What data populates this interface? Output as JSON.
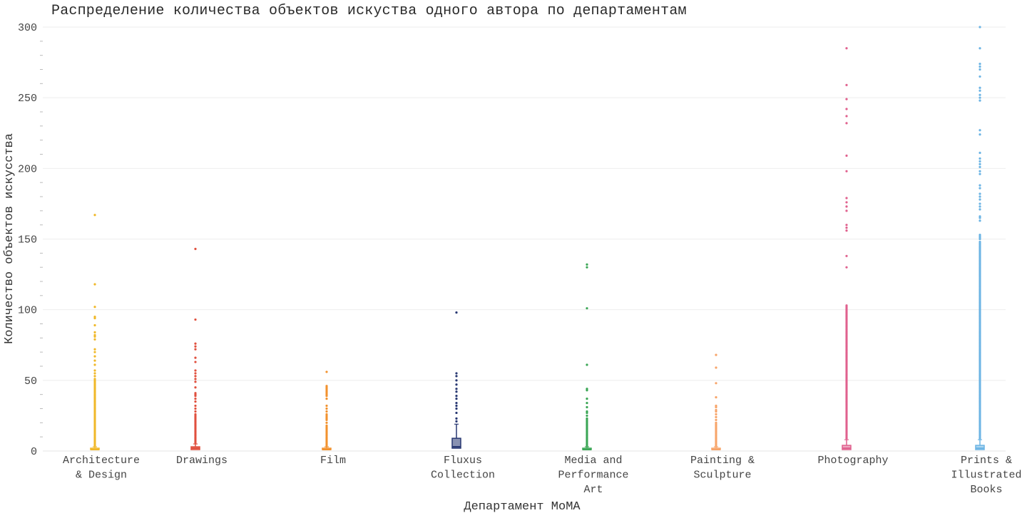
{
  "chart_data": {
    "type": "box",
    "title": "Распределение количества объектов искуства одного автора по департаментам",
    "xlabel": "Департамент MoMA",
    "ylabel": "Количество объектов искусства",
    "ylim": [
      0,
      300
    ],
    "yticks": [
      0,
      50,
      100,
      150,
      200,
      250,
      300
    ],
    "grid": true,
    "categories": [
      {
        "name": "Architecture & Design",
        "label_lines": [
          "Architecture",
          "& Design"
        ],
        "color": "#f0b829",
        "box": {
          "q1": 1,
          "median": 1,
          "q3": 2,
          "whisker_high": 3
        },
        "outliers": [
          4,
          5,
          6,
          7,
          8,
          9,
          10,
          11,
          12,
          13,
          14,
          15,
          16,
          17,
          18,
          19,
          20,
          21,
          22,
          23,
          24,
          25,
          26,
          27,
          28,
          29,
          30,
          31,
          32,
          33,
          34,
          35,
          36,
          37,
          38,
          39,
          40,
          41,
          42,
          43,
          44,
          45,
          46,
          47,
          48,
          49,
          50,
          51,
          53,
          55,
          57,
          61,
          64,
          67,
          70,
          72,
          79,
          81,
          82,
          84,
          89,
          94,
          95,
          102,
          118,
          167
        ]
      },
      {
        "name": "Drawings",
        "label_lines": [
          "Drawings"
        ],
        "color": "#e0503e",
        "box": {
          "q1": 1,
          "median": 2,
          "q3": 3,
          "whisker_high": 5
        },
        "outliers": [
          6,
          7,
          8,
          9,
          10,
          11,
          12,
          13,
          14,
          15,
          16,
          17,
          18,
          19,
          20,
          21,
          22,
          23,
          24,
          25,
          26,
          28,
          30,
          32,
          35,
          37,
          39,
          40,
          41,
          45,
          49,
          51,
          53,
          55,
          57,
          63,
          66,
          72,
          74,
          76,
          93,
          143
        ]
      },
      {
        "name": "Film",
        "label_lines": [
          "Film"
        ],
        "color": "#f2922e",
        "box": {
          "q1": 1,
          "median": 1,
          "q3": 2,
          "whisker_high": 3
        },
        "outliers": [
          4,
          5,
          6,
          7,
          8,
          9,
          10,
          11,
          12,
          13,
          14,
          15,
          16,
          17,
          18,
          20,
          22,
          23,
          24,
          25,
          26,
          28,
          30,
          32,
          37,
          39,
          40,
          41,
          42,
          43,
          44,
          45,
          46,
          56
        ]
      },
      {
        "name": "Fluxus Collection",
        "label_lines": [
          "Fluxus",
          "Collection"
        ],
        "color": "#283872",
        "box": {
          "q1": 2,
          "median": 3,
          "q3": 9,
          "whisker_high": 19
        },
        "outliers": [
          21,
          23,
          27,
          30,
          32,
          34,
          37,
          39,
          42,
          44,
          47,
          50,
          53,
          55,
          98
        ]
      },
      {
        "name": "Media and Performance Art",
        "label_lines": [
          "Media and",
          "Performance",
          "Art"
        ],
        "color": "#3aa655",
        "box": {
          "q1": 1,
          "median": 1,
          "q3": 2,
          "whisker_high": 3
        },
        "outliers": [
          4,
          5,
          6,
          7,
          8,
          9,
          10,
          11,
          12,
          13,
          14,
          15,
          16,
          17,
          18,
          19,
          20,
          21,
          22,
          23,
          25,
          27,
          28,
          31,
          34,
          37,
          43,
          44,
          61,
          101,
          130,
          132
        ]
      },
      {
        "name": "Painting & Sculpture",
        "label_lines": [
          "Painting &",
          "Sculpture"
        ],
        "color": "#f7a469",
        "box": {
          "q1": 1,
          "median": 1,
          "q3": 2,
          "whisker_high": 3
        },
        "outliers": [
          4,
          5,
          6,
          7,
          8,
          9,
          10,
          11,
          12,
          13,
          14,
          15,
          16,
          17,
          18,
          19,
          20,
          22,
          24,
          26,
          28,
          29,
          31,
          32,
          38,
          48,
          59,
          68
        ]
      },
      {
        "name": "Photography",
        "label_lines": [
          "Photography"
        ],
        "color": "#e0618e",
        "box": {
          "q1": 1,
          "median": 2,
          "q3": 4,
          "whisker_high": 8
        },
        "outliers": [
          9,
          10,
          11,
          12,
          13,
          14,
          15,
          16,
          17,
          18,
          19,
          20,
          21,
          22,
          23,
          24,
          25,
          26,
          27,
          28,
          29,
          30,
          31,
          32,
          33,
          34,
          35,
          36,
          37,
          38,
          39,
          40,
          41,
          42,
          43,
          44,
          45,
          46,
          47,
          48,
          49,
          50,
          51,
          52,
          53,
          54,
          55,
          56,
          57,
          58,
          59,
          60,
          61,
          62,
          63,
          64,
          65,
          66,
          67,
          68,
          69,
          70,
          71,
          72,
          73,
          74,
          75,
          76,
          77,
          78,
          79,
          80,
          81,
          82,
          83,
          84,
          85,
          86,
          87,
          88,
          89,
          90,
          91,
          92,
          93,
          94,
          95,
          96,
          97,
          98,
          99,
          100,
          101,
          102,
          103,
          130,
          138,
          156,
          158,
          160,
          170,
          173,
          176,
          179,
          198,
          209,
          232,
          237,
          242,
          249,
          259,
          285
        ]
      },
      {
        "name": "Prints & Illustrated Books",
        "label_lines": [
          "Prints &",
          "Illustrated",
          "Books"
        ],
        "color": "#6cb4e4",
        "box": {
          "q1": 1,
          "median": 2,
          "q3": 4,
          "whisker_high": 8
        },
        "outliers": [
          9,
          10,
          11,
          12,
          13,
          14,
          15,
          16,
          17,
          18,
          19,
          20,
          21,
          22,
          23,
          24,
          25,
          26,
          27,
          28,
          29,
          30,
          31,
          32,
          33,
          34,
          35,
          36,
          37,
          38,
          39,
          40,
          41,
          42,
          43,
          44,
          45,
          46,
          47,
          48,
          49,
          50,
          51,
          52,
          53,
          54,
          55,
          56,
          57,
          58,
          59,
          60,
          61,
          62,
          63,
          64,
          65,
          66,
          67,
          68,
          69,
          70,
          71,
          72,
          73,
          74,
          75,
          76,
          77,
          78,
          79,
          80,
          81,
          82,
          83,
          84,
          85,
          86,
          87,
          88,
          89,
          90,
          91,
          92,
          93,
          94,
          95,
          96,
          97,
          98,
          99,
          100,
          101,
          102,
          103,
          104,
          105,
          106,
          107,
          108,
          109,
          110,
          111,
          112,
          113,
          114,
          115,
          116,
          117,
          118,
          119,
          120,
          121,
          122,
          123,
          124,
          125,
          126,
          127,
          128,
          129,
          130,
          131,
          132,
          133,
          134,
          135,
          136,
          137,
          138,
          139,
          140,
          141,
          142,
          143,
          144,
          145,
          146,
          147,
          148,
          150,
          151,
          152,
          153,
          163,
          165,
          166,
          171,
          173,
          175,
          178,
          180,
          182,
          186,
          188,
          196,
          198,
          201,
          203,
          205,
          207,
          211,
          224,
          227,
          248,
          250,
          252,
          255,
          257,
          265,
          270,
          272,
          274,
          285,
          300
        ]
      }
    ]
  }
}
